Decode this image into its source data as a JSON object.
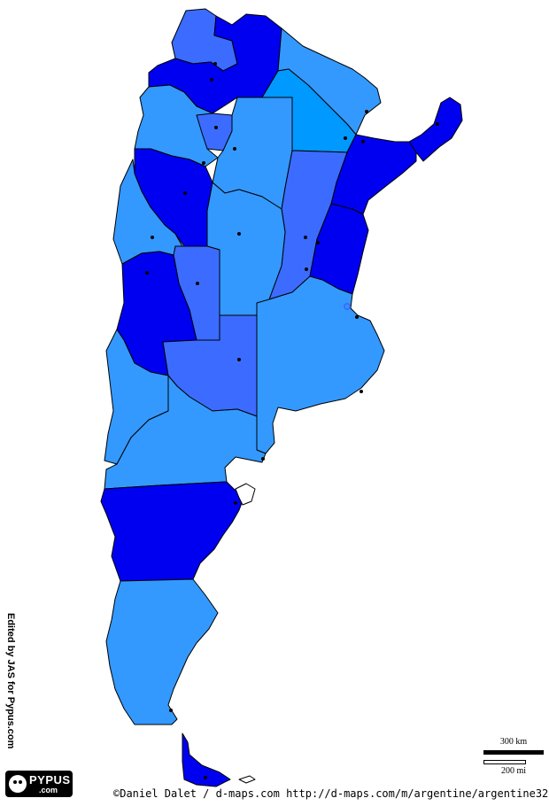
{
  "map": {
    "colors": {
      "dark_blue": "#0000f0",
      "royal_blue": "#3b6cff",
      "mid_blue": "#3399ff",
      "sky_blue": "#0099ff",
      "border": "#000000",
      "background": "#ffffff"
    },
    "provinces_count": 24
  },
  "credits": {
    "side": "Edited by JAS for Pypus.com",
    "logo_main": "PYPUS",
    "logo_sub": ".com",
    "source": "©Daniel Dalet / d-maps.com  http://d-maps.com/m/argentine/argentine32.gif"
  },
  "scale": {
    "km_label": "300 km",
    "mi_label": "200 mi"
  }
}
